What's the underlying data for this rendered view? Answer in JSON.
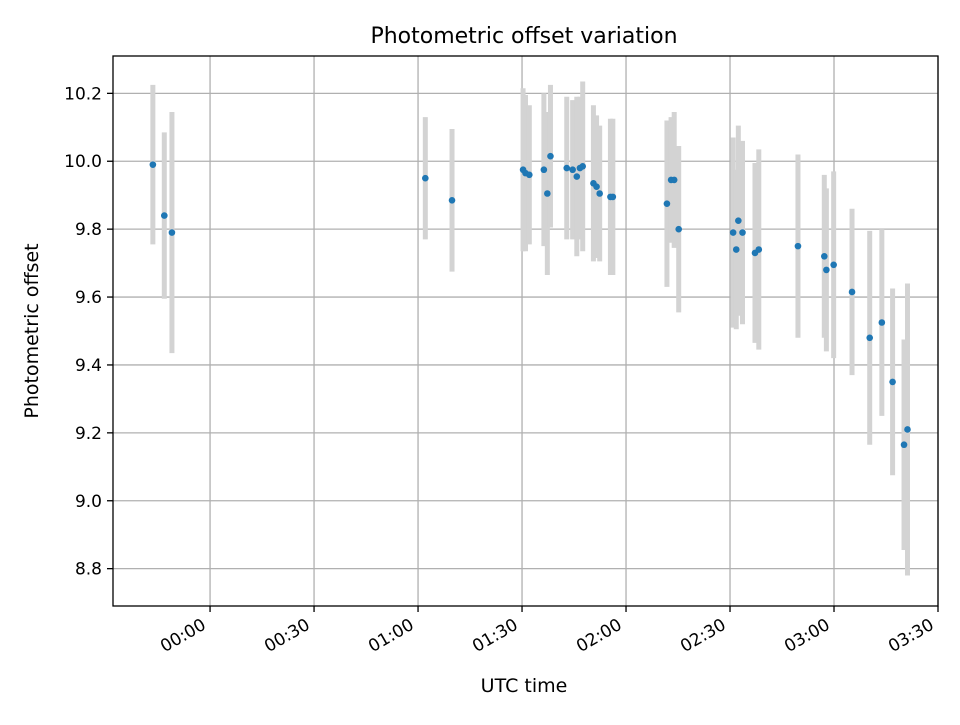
{
  "chart_data": {
    "type": "scatter",
    "title": "Photometric offset variation",
    "xlabel": "UTC time",
    "ylabel": "Photometric offset",
    "x_unit": "minutes",
    "xlim": [
      -28,
      210
    ],
    "ylim": [
      8.69,
      10.31
    ],
    "x_ticks": [
      {
        "value": 0,
        "label": "00:00"
      },
      {
        "value": 30,
        "label": "00:30"
      },
      {
        "value": 60,
        "label": "01:00"
      },
      {
        "value": 90,
        "label": "01:30"
      },
      {
        "value": 120,
        "label": "02:00"
      },
      {
        "value": 150,
        "label": "02:30"
      },
      {
        "value": 180,
        "label": "03:00"
      },
      {
        "value": 210,
        "label": "03:30"
      }
    ],
    "y_ticks": [
      {
        "value": 8.8,
        "label": "8.8"
      },
      {
        "value": 9.0,
        "label": "9.0"
      },
      {
        "value": 9.2,
        "label": "9.2"
      },
      {
        "value": 9.4,
        "label": "9.4"
      },
      {
        "value": 9.6,
        "label": "9.6"
      },
      {
        "value": 9.8,
        "label": "9.8"
      },
      {
        "value": 10.0,
        "label": "10.0"
      },
      {
        "value": 10.2,
        "label": "10.2"
      }
    ],
    "grid": true,
    "colors": {
      "points": "#1f77b4",
      "errorbars": "#d3d3d3",
      "grid": "#b0b0b0"
    },
    "series": [
      {
        "points": [
          {
            "x": -16.5,
            "y": 9.99,
            "err": 0.235
          },
          {
            "x": -13.2,
            "y": 9.84,
            "err": 0.245
          },
          {
            "x": -11.0,
            "y": 9.79,
            "err": 0.355
          },
          {
            "x": 62.1,
            "y": 9.95,
            "err": 0.18
          },
          {
            "x": 69.8,
            "y": 9.885,
            "err": 0.21
          },
          {
            "x": 90.3,
            "y": 9.975,
            "err": 0.24
          },
          {
            "x": 91.0,
            "y": 9.965,
            "err": 0.23
          },
          {
            "x": 92.1,
            "y": 9.96,
            "err": 0.205
          },
          {
            "x": 96.3,
            "y": 9.975,
            "err": 0.225
          },
          {
            "x": 97.3,
            "y": 9.905,
            "err": 0.24
          },
          {
            "x": 98.2,
            "y": 10.015,
            "err": 0.21
          },
          {
            "x": 102.9,
            "y": 9.98,
            "err": 0.21
          },
          {
            "x": 104.6,
            "y": 9.975,
            "err": 0.205
          },
          {
            "x": 105.8,
            "y": 9.955,
            "err": 0.235
          },
          {
            "x": 106.7,
            "y": 9.98,
            "err": 0.21
          },
          {
            "x": 107.5,
            "y": 9.985,
            "err": 0.25
          },
          {
            "x": 110.6,
            "y": 9.935,
            "err": 0.23
          },
          {
            "x": 111.5,
            "y": 9.925,
            "err": 0.21
          },
          {
            "x": 112.4,
            "y": 9.905,
            "err": 0.2
          },
          {
            "x": 115.5,
            "y": 9.895,
            "err": 0.23
          },
          {
            "x": 116.2,
            "y": 9.895,
            "err": 0.23
          },
          {
            "x": 131.8,
            "y": 9.875,
            "err": 0.245
          },
          {
            "x": 133.0,
            "y": 9.945,
            "err": 0.185
          },
          {
            "x": 133.9,
            "y": 9.945,
            "err": 0.2
          },
          {
            "x": 135.2,
            "y": 9.8,
            "err": 0.245
          },
          {
            "x": 150.9,
            "y": 9.79,
            "err": 0.28
          },
          {
            "x": 151.8,
            "y": 9.74,
            "err": 0.235
          },
          {
            "x": 152.4,
            "y": 9.825,
            "err": 0.28
          },
          {
            "x": 153.6,
            "y": 9.79,
            "err": 0.27
          },
          {
            "x": 157.2,
            "y": 9.73,
            "err": 0.265
          },
          {
            "x": 158.3,
            "y": 9.74,
            "err": 0.295
          },
          {
            "x": 169.6,
            "y": 9.75,
            "err": 0.27
          },
          {
            "x": 177.2,
            "y": 9.72,
            "err": 0.24
          },
          {
            "x": 177.8,
            "y": 9.68,
            "err": 0.24
          },
          {
            "x": 179.9,
            "y": 9.695,
            "err": 0.275
          },
          {
            "x": 185.2,
            "y": 9.615,
            "err": 0.245
          },
          {
            "x": 190.3,
            "y": 9.48,
            "err": 0.315
          },
          {
            "x": 193.8,
            "y": 9.525,
            "err": 0.275
          },
          {
            "x": 196.9,
            "y": 9.35,
            "err": 0.275
          },
          {
            "x": 200.2,
            "y": 9.165,
            "err": 0.31
          },
          {
            "x": 201.2,
            "y": 9.21,
            "err": 0.43
          }
        ]
      }
    ]
  }
}
